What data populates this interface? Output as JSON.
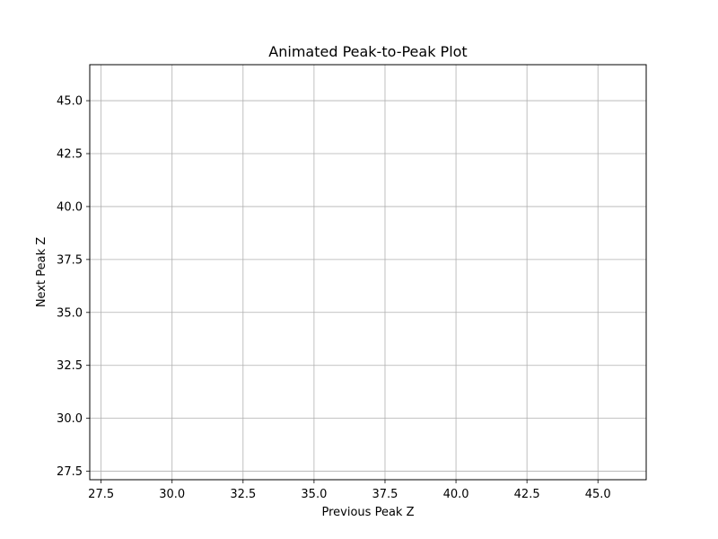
{
  "chart_data": {
    "type": "scatter",
    "title": "Animated Peak-to-Peak Plot",
    "xlabel": "Previous Peak Z",
    "ylabel": "Next Peak Z",
    "xlim": [
      27.1,
      46.7
    ],
    "ylim": [
      27.1,
      46.7
    ],
    "xticks": [
      27.5,
      30.0,
      32.5,
      35.0,
      37.5,
      40.0,
      42.5,
      45.0
    ],
    "yticks": [
      27.5,
      30.0,
      32.5,
      35.0,
      37.5,
      40.0,
      42.5,
      45.0
    ],
    "xtick_labels": [
      "27.5",
      "30.0",
      "32.5",
      "35.0",
      "37.5",
      "40.0",
      "42.5",
      "45.0"
    ],
    "ytick_labels": [
      "27.5",
      "30.0",
      "32.5",
      "35.0",
      "37.5",
      "40.0",
      "42.5",
      "45.0"
    ],
    "series": [],
    "grid": true,
    "colors": {
      "grid": "#b0b0b0",
      "axes": "#000000",
      "background": "#ffffff"
    }
  }
}
